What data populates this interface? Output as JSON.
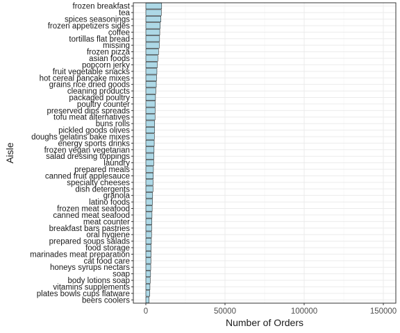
{
  "chart_data": {
    "type": "bar",
    "orientation": "horizontal",
    "xlabel": "Number of Orders",
    "ylabel": "Aisle",
    "xlim": [
      0,
      155000
    ],
    "xticks": [
      0,
      50000,
      100000,
      150000
    ],
    "xtick_labels": [
      "0",
      "50000",
      "100000",
      "150000"
    ],
    "grid": true,
    "bar_fill": "#add8e6",
    "bar_stroke": "#000000",
    "categories": [
      "frozen breakfast",
      "tea",
      "spices seasonings",
      "frozen appetizers sides",
      "coffee",
      "tortillas flat bread",
      "missing",
      "frozen pizza",
      "asian foods",
      "popcorn jerky",
      "fruit vegetable snacks",
      "hot cereal pancake mixes",
      "grains rice dried goods",
      "cleaning products",
      "packaged poultry",
      "poultry counter",
      "preserved dips spreads",
      "tofu meat alternatives",
      "buns rolls",
      "pickled goods olives",
      "doughs gelatins bake mixes",
      "energy sports drinks",
      "frozen vegan vegetarian",
      "salad dressing toppings",
      "laundry",
      "prepared meals",
      "canned fruit applesauce",
      "specialty cheeses",
      "dish detergents",
      "granola",
      "latino foods",
      "frozen meat seafood",
      "canned meat seafood",
      "meat counter",
      "breakfast bars pastries",
      "oral hygiene",
      "prepared soups salads",
      "food storage",
      "marinades meat preparation",
      "cat food care",
      "honeys syrups nectars",
      "soap",
      "body lotions soap",
      "vitamins supplements",
      "plates bowls cups flatware",
      "beers coolers"
    ],
    "values": [
      10000,
      9800,
      9500,
      9100,
      8800,
      8700,
      8500,
      8000,
      7600,
      7200,
      7000,
      6800,
      6600,
      6300,
      6100,
      6000,
      5900,
      5800,
      5600,
      5500,
      5400,
      5300,
      5200,
      5100,
      5000,
      4800,
      4700,
      4600,
      4500,
      4300,
      4200,
      4000,
      3900,
      3800,
      3700,
      3600,
      3500,
      3400,
      3300,
      3200,
      3100,
      3000,
      2800,
      2600,
      2500,
      2000
    ]
  }
}
